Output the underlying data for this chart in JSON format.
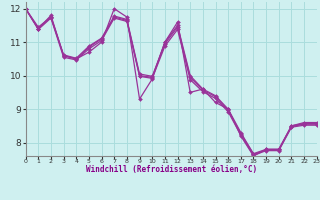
{
  "title": "",
  "xlabel": "Windchill (Refroidissement éolien,°C)",
  "bg_color": "#cff0f0",
  "line_color": "#993399",
  "grid_color": "#aadddd",
  "xlim": [
    0,
    23
  ],
  "ylim": [
    7.6,
    12.2
  ],
  "xticks": [
    0,
    1,
    2,
    3,
    4,
    5,
    6,
    7,
    8,
    9,
    10,
    11,
    12,
    13,
    14,
    15,
    16,
    17,
    18,
    19,
    20,
    21,
    22,
    23
  ],
  "yticks": [
    8,
    9,
    10,
    11,
    12
  ],
  "series": [
    [
      12.0,
      11.4,
      11.8,
      10.6,
      10.5,
      10.7,
      11.0,
      12.0,
      11.75,
      9.3,
      9.9,
      11.0,
      11.6,
      9.5,
      9.6,
      9.2,
      9.0,
      8.2,
      7.6,
      7.8,
      7.8,
      8.5,
      8.6,
      8.6
    ],
    [
      12.0,
      11.4,
      11.75,
      10.6,
      10.5,
      10.85,
      11.1,
      11.75,
      11.65,
      10.0,
      9.95,
      11.0,
      11.5,
      10.0,
      9.6,
      9.4,
      9.0,
      8.3,
      7.65,
      7.78,
      7.78,
      8.48,
      8.55,
      8.55
    ],
    [
      12.0,
      11.45,
      11.75,
      10.62,
      10.52,
      10.88,
      11.12,
      11.78,
      11.68,
      10.05,
      9.98,
      10.95,
      11.45,
      9.95,
      9.57,
      9.37,
      8.97,
      8.27,
      7.67,
      7.8,
      7.8,
      8.5,
      8.57,
      8.57
    ],
    [
      12.0,
      11.38,
      11.72,
      10.55,
      10.47,
      10.8,
      11.05,
      11.72,
      11.62,
      9.98,
      9.92,
      10.88,
      11.38,
      9.88,
      9.52,
      9.32,
      8.92,
      8.22,
      7.62,
      7.76,
      7.76,
      8.46,
      8.52,
      8.52
    ]
  ]
}
